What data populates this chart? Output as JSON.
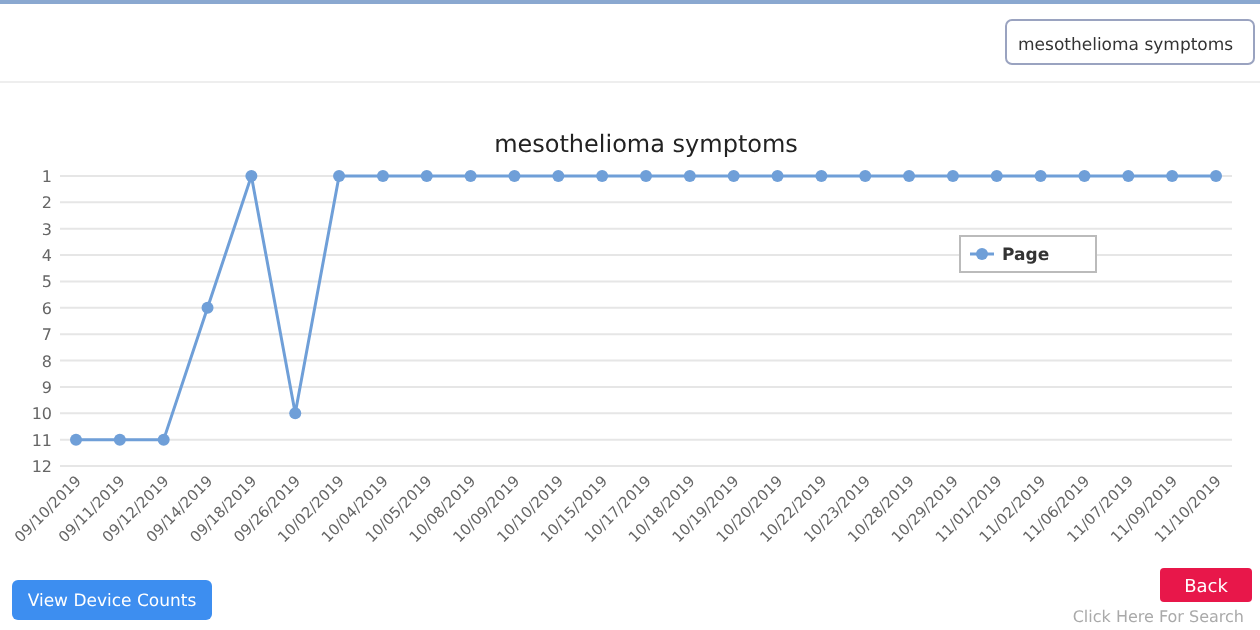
{
  "chart_data": {
    "type": "line",
    "title": "mesothelioma symptoms",
    "categories": [
      "09/10/2019",
      "09/11/2019",
      "09/12/2019",
      "09/14/2019",
      "09/18/2019",
      "09/26/2019",
      "10/02/2019",
      "10/04/2019",
      "10/05/2019",
      "10/08/2019",
      "10/09/2019",
      "10/10/2019",
      "10/15/2019",
      "10/17/2019",
      "10/18/2019",
      "10/19/2019",
      "10/20/2019",
      "10/22/2019",
      "10/23/2019",
      "10/28/2019",
      "10/29/2019",
      "11/01/2019",
      "11/02/2019",
      "11/06/2019",
      "11/07/2019",
      "11/09/2019",
      "11/10/2019"
    ],
    "series": [
      {
        "name": "Page",
        "color": "#6f9fd8",
        "values": [
          11,
          11,
          11,
          6,
          1,
          10,
          1,
          1,
          1,
          1,
          1,
          1,
          1,
          1,
          1,
          1,
          1,
          1,
          1,
          1,
          1,
          1,
          1,
          1,
          1,
          1,
          1
        ]
      }
    ],
    "ylim": [
      12,
      1
    ],
    "yticks": [
      1,
      2,
      3,
      4,
      5,
      6,
      7,
      8,
      9,
      10,
      11,
      12
    ],
    "grid": "y",
    "legend": "top right",
    "marker": "circle",
    "line_style": "solid",
    "annotations": [
      "mesothelioma symptoms",
      "View Device Counts",
      "Back",
      "Click Here For Search"
    ]
  }
}
